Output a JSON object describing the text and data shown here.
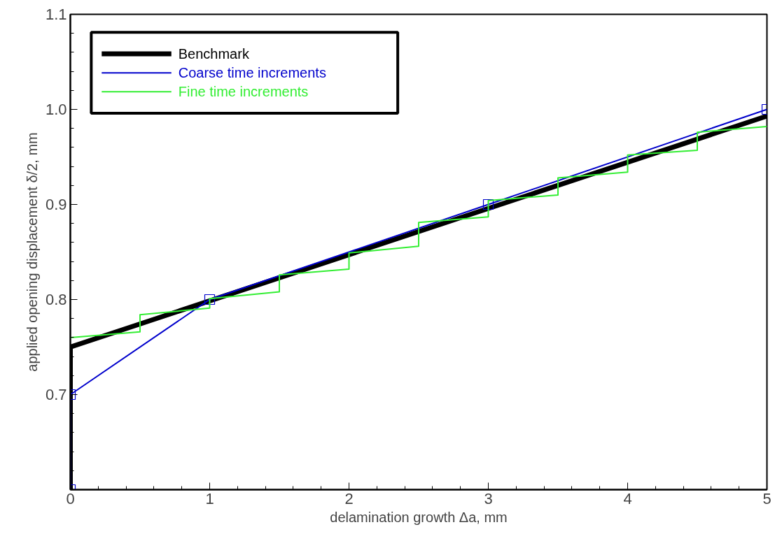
{
  "chart_data": {
    "type": "line",
    "xlabel": "delamination growth Δa, mm",
    "ylabel": "applied opening displacement δ/2, mm",
    "xlim": [
      0,
      5
    ],
    "ylim": [
      0.6,
      1.1
    ],
    "xticks": [
      0,
      1,
      2,
      3,
      4,
      5
    ],
    "yticks": [
      {
        "value": 0.6,
        "label": null
      },
      {
        "value": 0.7,
        "label": "0.7"
      },
      {
        "value": 0.8,
        "label": "0.8"
      },
      {
        "value": 0.9,
        "label": "0.9"
      },
      {
        "value": 1.0,
        "label": "1.0"
      },
      {
        "value": 1.1,
        "label": "1.1"
      }
    ],
    "grid": false,
    "legend": "top left",
    "line_style": "solid",
    "series": [
      {
        "name": "Benchmark",
        "color": "#000000",
        "marker": "none",
        "x": [
          0,
          0,
          5
        ],
        "values": [
          0.6,
          0.75,
          0.993
        ]
      },
      {
        "name": "Coarse time increments",
        "color": "#0000cc",
        "marker": "square",
        "x": [
          0,
          0,
          1,
          3,
          5
        ],
        "values": [
          0.6,
          0.7,
          0.8,
          0.9,
          1.0
        ]
      },
      {
        "name": "Fine time increments",
        "color": "#33ee33",
        "marker": "none",
        "x": [
          0,
          0.5,
          0.5,
          1,
          1,
          1.5,
          1.5,
          2,
          2,
          2.5,
          2.5,
          3,
          3,
          3.5,
          3.5,
          4,
          4,
          4.5,
          4.5,
          5
        ],
        "values": [
          0.76,
          0.766,
          0.784,
          0.791,
          0.801,
          0.808,
          0.826,
          0.832,
          0.849,
          0.856,
          0.881,
          0.887,
          0.904,
          0.91,
          0.928,
          0.934,
          0.952,
          0.957,
          0.976,
          0.982
        ]
      }
    ]
  }
}
